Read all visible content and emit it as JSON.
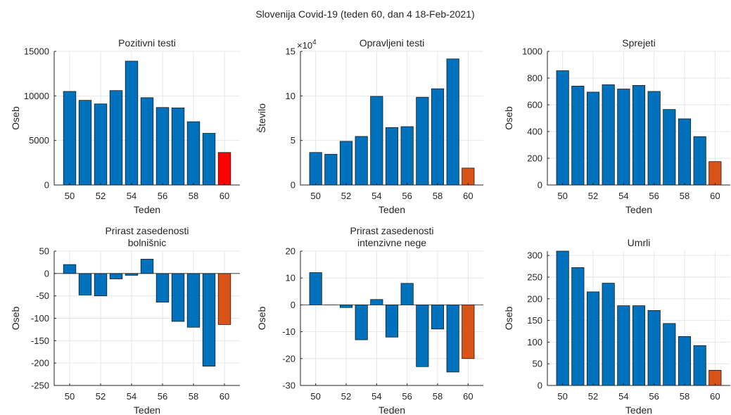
{
  "figure": {
    "title": "Slovenija Covid-19 (teden 60, dan 4 18-Feb-2021)"
  },
  "colors": {
    "bar_default": "#0072BD",
    "bar_highlight_red": "#FF0000",
    "bar_highlight_orange": "#D95319"
  },
  "chart_data": [
    {
      "type": "bar",
      "title": [
        "Pozitivni testi"
      ],
      "xlabel": "Teden",
      "ylabel": "Oseb",
      "x": [
        50,
        51,
        52,
        53,
        54,
        55,
        56,
        57,
        58,
        59,
        60
      ],
      "values": [
        10500,
        9500,
        9100,
        10600,
        13900,
        9800,
        8700,
        8650,
        7100,
        5800,
        3650
      ],
      "highlight_last": "red",
      "xlim": [
        49,
        61
      ],
      "ylim": [
        0,
        15000
      ],
      "yticks": [
        0,
        5000,
        10000,
        15000
      ],
      "ytick_labels": [
        "0",
        "5000",
        "10000",
        "15000"
      ],
      "xticks": [
        50,
        52,
        54,
        56,
        58,
        60
      ],
      "exponent": "",
      "grid": true
    },
    {
      "type": "bar",
      "title": [
        "Opravljeni testi"
      ],
      "xlabel": "Teden",
      "ylabel": "Število",
      "x": [
        50,
        51,
        52,
        53,
        54,
        55,
        56,
        57,
        58,
        59,
        60
      ],
      "values": [
        36500,
        34500,
        49000,
        54500,
        99500,
        64500,
        65500,
        98500,
        108000,
        141500,
        19000
      ],
      "highlight_last": "orange",
      "xlim": [
        49,
        61
      ],
      "ylim": [
        0,
        150000
      ],
      "yticks": [
        0,
        50000,
        100000,
        150000
      ],
      "ytick_labels": [
        "0",
        "5",
        "10",
        "15"
      ],
      "xticks": [
        50,
        52,
        54,
        56,
        58,
        60
      ],
      "exponent": "4",
      "grid": true
    },
    {
      "type": "bar",
      "title": [
        "Sprejeti"
      ],
      "xlabel": "Teden",
      "ylabel": "Oseb",
      "x": [
        50,
        51,
        52,
        53,
        54,
        55,
        56,
        57,
        58,
        59,
        60
      ],
      "values": [
        855,
        740,
        695,
        750,
        718,
        745,
        700,
        565,
        495,
        362,
        175
      ],
      "highlight_last": "orange",
      "xlim": [
        49,
        61
      ],
      "ylim": [
        0,
        1000
      ],
      "yticks": [
        0,
        200,
        400,
        600,
        800,
        1000
      ],
      "ytick_labels": [
        "0",
        "200",
        "400",
        "600",
        "800",
        "1000"
      ],
      "xticks": [
        50,
        52,
        54,
        56,
        58,
        60
      ],
      "exponent": "",
      "grid": true
    },
    {
      "type": "bar",
      "title": [
        "Prirast zasedenosti",
        "bolnišnic"
      ],
      "xlabel": "Teden",
      "ylabel": "Oseb",
      "x": [
        50,
        51,
        52,
        53,
        54,
        55,
        56,
        57,
        58,
        59,
        60
      ],
      "values": [
        20,
        -48,
        -50,
        -12,
        -4,
        32,
        -64,
        -107,
        -120,
        -207,
        -114
      ],
      "highlight_last": "orange",
      "xlim": [
        49,
        61
      ],
      "ylim": [
        -250,
        50
      ],
      "yticks": [
        -250,
        -200,
        -150,
        -100,
        -50,
        0,
        50
      ],
      "ytick_labels": [
        "-250",
        "-200",
        "-150",
        "-100",
        "-50",
        "0",
        "50"
      ],
      "xticks": [
        50,
        52,
        54,
        56,
        58,
        60
      ],
      "exponent": "",
      "grid": true
    },
    {
      "type": "bar",
      "title": [
        "Prirast zasedenosti",
        "intenzivne nege"
      ],
      "xlabel": "Teden",
      "ylabel": "Oseb",
      "x": [
        50,
        51,
        52,
        53,
        54,
        55,
        56,
        57,
        58,
        59,
        60
      ],
      "values": [
        12,
        0,
        -1,
        -13,
        2,
        -12,
        8,
        -23,
        -9,
        -25,
        -20
      ],
      "highlight_last": "orange",
      "xlim": [
        49,
        61
      ],
      "ylim": [
        -30,
        20
      ],
      "yticks": [
        -30,
        -20,
        -10,
        0,
        10,
        20
      ],
      "ytick_labels": [
        "-30",
        "-20",
        "-10",
        "0",
        "10",
        "20"
      ],
      "xticks": [
        50,
        52,
        54,
        56,
        58,
        60
      ],
      "exponent": "",
      "grid": true
    },
    {
      "type": "bar",
      "title": [
        "Umrli"
      ],
      "xlabel": "Teden",
      "ylabel": "Oseb",
      "x": [
        50,
        51,
        52,
        53,
        54,
        55,
        56,
        57,
        58,
        59,
        60
      ],
      "values": [
        310,
        272,
        216,
        236,
        184,
        184,
        173,
        143,
        113,
        92,
        35
      ],
      "highlight_last": "orange",
      "xlim": [
        49,
        61
      ],
      "ylim": [
        0,
        310
      ],
      "yticks": [
        0,
        50,
        100,
        150,
        200,
        250,
        300
      ],
      "ytick_labels": [
        "0",
        "50",
        "100",
        "150",
        "200",
        "250",
        "300"
      ],
      "xticks": [
        50,
        52,
        54,
        56,
        58,
        60
      ],
      "exponent": "",
      "grid": true
    }
  ]
}
